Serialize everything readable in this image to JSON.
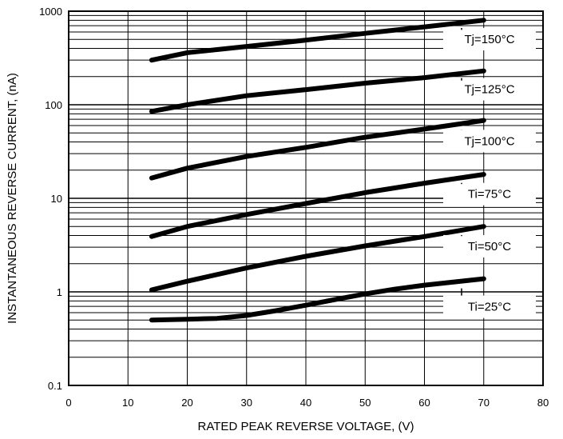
{
  "chart_data": {
    "type": "line",
    "title": "",
    "xlabel": "RATED PEAK REVERSE VOLTAGE, (V)",
    "ylabel": "INSTANTANEOUS REVERSE CURRENT, (nA)",
    "xlim": [
      0,
      80
    ],
    "ylim": [
      0.1,
      1000
    ],
    "y_scale": "log",
    "grid": true,
    "x_ticks": [
      "0",
      "10",
      "20",
      "30",
      "40",
      "50",
      "60",
      "70",
      "80"
    ],
    "y_ticks": [
      "0.1",
      "1",
      "10",
      "100",
      "1000"
    ],
    "series": [
      {
        "name": "Tj=150°C",
        "x": [
          14,
          20,
          30,
          40,
          50,
          60,
          70
        ],
        "values": [
          300,
          360,
          420,
          490,
          580,
          680,
          800
        ]
      },
      {
        "name": "Tj=125°C",
        "x": [
          14,
          20,
          30,
          40,
          50,
          60,
          70
        ],
        "values": [
          85,
          100,
          125,
          145,
          170,
          195,
          230
        ]
      },
      {
        "name": "Tj=100°C",
        "x": [
          14,
          20,
          30,
          40,
          50,
          60,
          70
        ],
        "values": [
          16.5,
          21,
          28,
          35,
          45,
          55,
          68
        ]
      },
      {
        "name": "Ti=75°C",
        "x": [
          14,
          20,
          30,
          40,
          50,
          60,
          70
        ],
        "values": [
          3.9,
          5,
          6.7,
          8.8,
          11.5,
          14.5,
          18
        ]
      },
      {
        "name": "Ti=50°C",
        "x": [
          14,
          20,
          30,
          40,
          50,
          60,
          70
        ],
        "values": [
          1.05,
          1.3,
          1.8,
          2.4,
          3.1,
          3.9,
          5.0
        ]
      },
      {
        "name": "Ti=25°C",
        "x": [
          14,
          20,
          25,
          30,
          35,
          40,
          45,
          50,
          55,
          60,
          70
        ],
        "values": [
          0.5,
          0.51,
          0.52,
          0.56,
          0.63,
          0.72,
          0.83,
          0.95,
          1.07,
          1.18,
          1.38
        ]
      }
    ]
  }
}
